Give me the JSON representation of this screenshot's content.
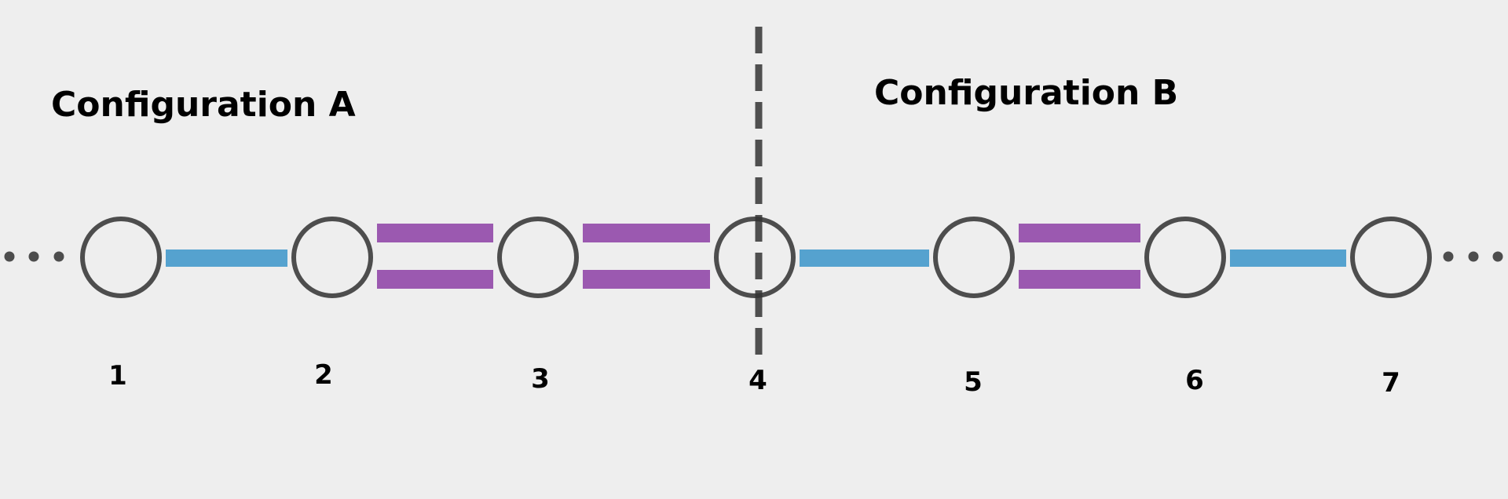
{
  "background_color": "#eeeeee",
  "node_stroke_color": "#4d4d4d",
  "single_bond_color": "#55a2cf",
  "double_bond_color": "#9b59b0",
  "divider_color": "#333333",
  "ellipsis_color": "#4d4d4d",
  "configurations": {
    "a_label": "Configuration A",
    "b_label": "Configuration B"
  },
  "nodes": [
    {
      "label": "1"
    },
    {
      "label": "2"
    },
    {
      "label": "3"
    },
    {
      "label": "4"
    },
    {
      "label": "5"
    },
    {
      "label": "6"
    },
    {
      "label": "7"
    }
  ],
  "bonds": [
    {
      "from": "1",
      "to": "2",
      "type": "single"
    },
    {
      "from": "2",
      "to": "3",
      "type": "double"
    },
    {
      "from": "3",
      "to": "4",
      "type": "double"
    },
    {
      "from": "4",
      "to": "5",
      "type": "single"
    },
    {
      "from": "5",
      "to": "6",
      "type": "double"
    },
    {
      "from": "6",
      "to": "7",
      "type": "single"
    }
  ],
  "divider_at_node": "4",
  "chain_continues_left": true,
  "chain_continues_right": true
}
